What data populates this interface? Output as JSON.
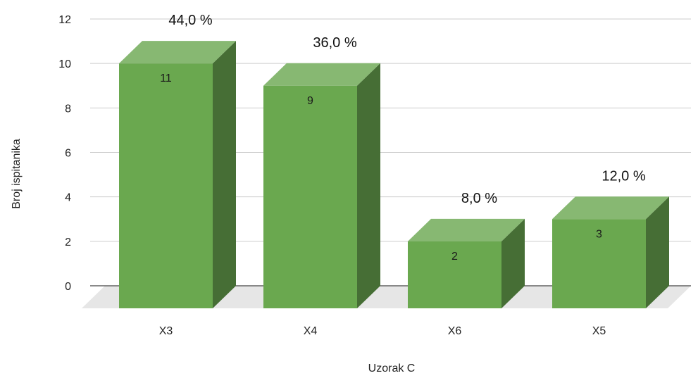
{
  "chart_data": {
    "type": "bar",
    "title": "",
    "xlabel": "Uzorak C",
    "ylabel": "Broj ispitanika",
    "categories": [
      "X3",
      "X4",
      "X6",
      "X5"
    ],
    "values": [
      11,
      9,
      2,
      3
    ],
    "value_labels": [
      "11",
      "9",
      "2",
      "3"
    ],
    "percent_labels": [
      "44,0 %",
      "36,0 %",
      "8,0 %",
      "12,0 %"
    ],
    "ylim": [
      0,
      12
    ],
    "yticks": [
      0,
      2,
      4,
      6,
      8,
      10,
      12
    ],
    "ytick_labels": [
      "0",
      "2",
      "4",
      "6",
      "8",
      "10",
      "12"
    ],
    "grid": true,
    "legend": "none",
    "colors": {
      "bar_front": "#6aa84f",
      "bar_top": "#87b872",
      "bar_side": "#466e35",
      "floor": "#e6e6e6",
      "grid": "#cccccc",
      "baseline": "#444444"
    }
  }
}
